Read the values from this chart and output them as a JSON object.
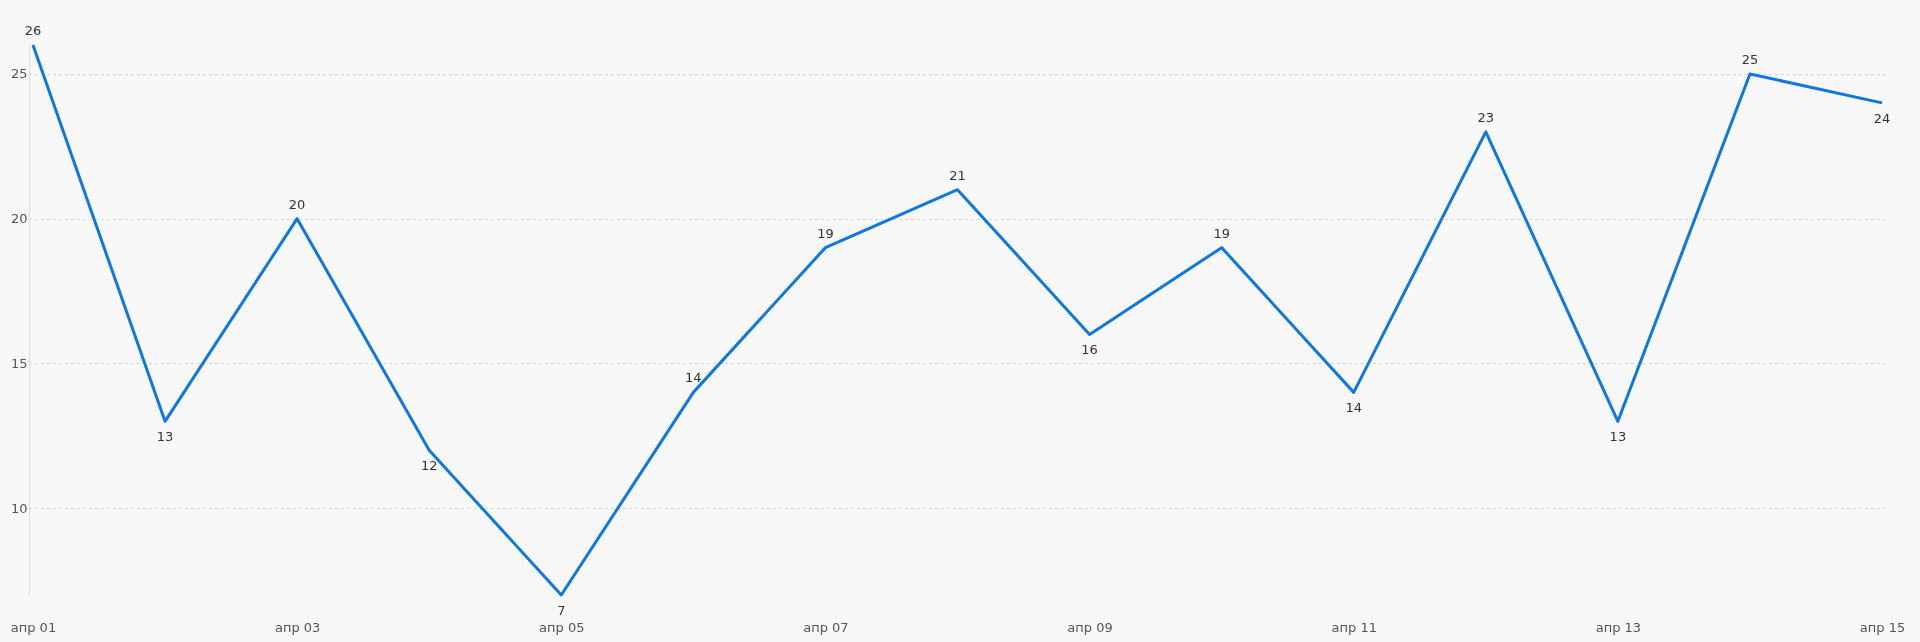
{
  "chart_data": {
    "type": "line",
    "categories": [
      "апр 01",
      null,
      "апр 03",
      null,
      "апр 05",
      null,
      "апр 07",
      null,
      "апр 09",
      null,
      "апр 11",
      null,
      "апр 13",
      null,
      "апр 15"
    ],
    "series": [
      {
        "color": "#0f78e0",
        "values": [
          26,
          13,
          20,
          12,
          7,
          14,
          19,
          21,
          16,
          19,
          14,
          23,
          13,
          25,
          24
        ]
      }
    ],
    "ylim": [
      7,
      26
    ],
    "yticks": [
      10,
      15,
      20,
      25
    ],
    "grid": "y",
    "data_labels": true,
    "marker": "none",
    "line_style": "solid"
  }
}
